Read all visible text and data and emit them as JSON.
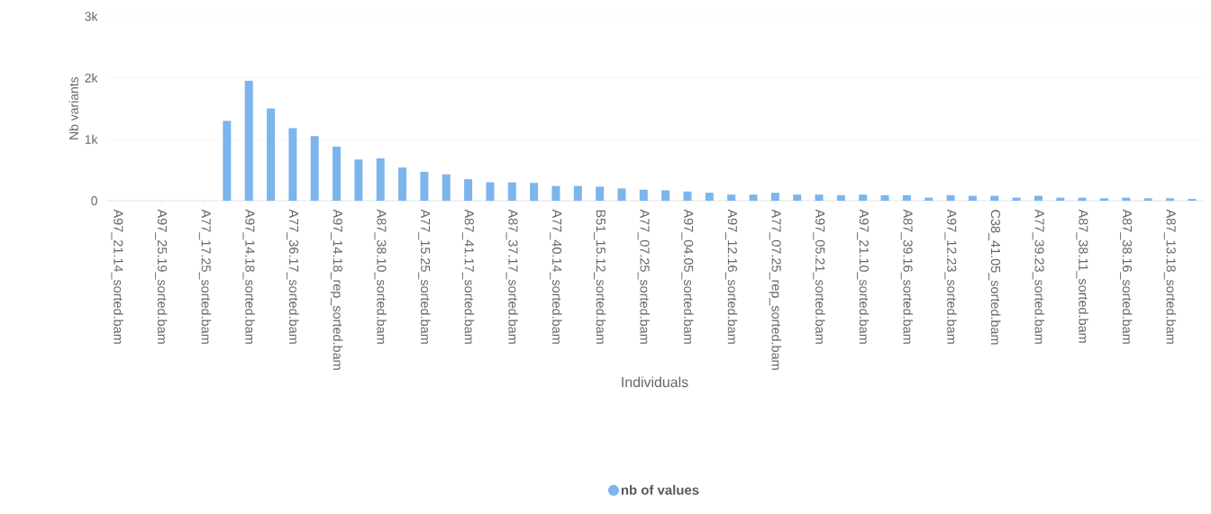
{
  "chart_data": {
    "type": "bar",
    "xlabel": "Individuals",
    "ylabel": "Nb variants",
    "categories": [
      "A97_21.14_sorted.bam",
      null,
      "A97_25.19_sorted.bam",
      null,
      "A77_17.25_sorted.bam",
      null,
      "A97_14.18_sorted.bam",
      null,
      "A77_36.17_sorted.bam",
      null,
      "A97_14.18_rep_sorted.bam",
      null,
      "A87_38.10_sorted.bam",
      null,
      "A77_15.25_sorted.bam",
      null,
      "A87_41.17_sorted.bam",
      null,
      "A87_37.17_sorted.bam",
      null,
      "A77_40.14_sorted.bam",
      null,
      "B51_15.12_sorted.bam",
      null,
      "A77_07.25_sorted.bam",
      null,
      "A97_04.05_sorted.bam",
      null,
      "A97_12.16_sorted.bam",
      null,
      "A77_07.25_rep_sorted.bam",
      null,
      "A97_05.21_sorted.bam",
      null,
      "A97_21.10_sorted.bam",
      null,
      "A87_39.16_sorted.bam",
      null,
      "A97_12.23_sorted.bam",
      null,
      "C38_41.05_sorted.bam",
      null,
      "A77_39.23_sorted.bam",
      null,
      "A87_38.11_sorted.bam",
      null,
      "A87_38.16_sorted.bam",
      null,
      "A87_13.18_sorted.bam",
      null
    ],
    "series": [
      {
        "name": "nb of values",
        "color": "#7cb5ec",
        "values": [
          0,
          0,
          0,
          0,
          0,
          1300,
          1950,
          1500,
          1180,
          1050,
          880,
          670,
          690,
          540,
          470,
          430,
          350,
          300,
          300,
          290,
          240,
          240,
          230,
          200,
          180,
          170,
          150,
          130,
          100,
          100,
          130,
          100,
          100,
          90,
          100,
          90,
          90,
          50,
          90,
          80,
          80,
          50,
          80,
          50,
          50,
          40,
          50,
          40,
          40,
          30
        ]
      }
    ],
    "ylim": [
      0,
      3000
    ],
    "yticks": [
      0,
      {
        "value": 1000,
        "label": "1k"
      },
      {
        "value": 2000,
        "label": "2k"
      },
      {
        "value": 3000,
        "label": "3k"
      }
    ],
    "grid": "y",
    "legend": "bottom"
  }
}
